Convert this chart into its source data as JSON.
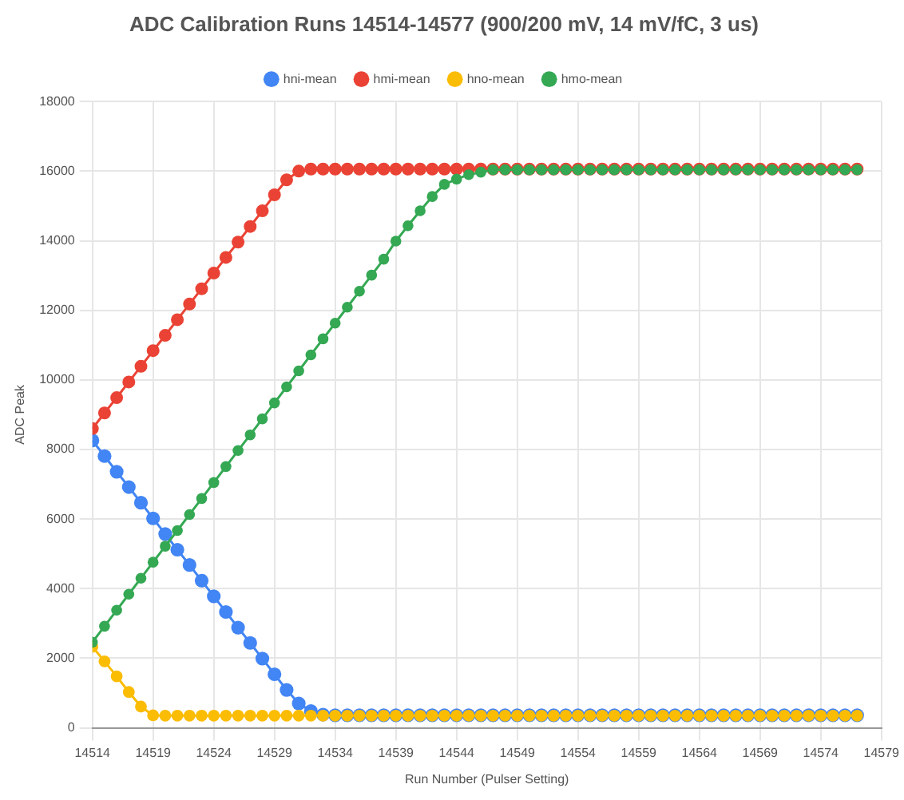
{
  "chart_data": {
    "type": "line",
    "title": "ADC Calibration Runs 14514-14577 (900/200 mV, 14 mV/fC, 3 us)",
    "xlabel": "Run Number (Pulser Setting)",
    "ylabel": "ADC Peak",
    "x": [
      14514,
      14515,
      14516,
      14517,
      14518,
      14519,
      14520,
      14521,
      14522,
      14523,
      14524,
      14525,
      14526,
      14527,
      14528,
      14529,
      14530,
      14531,
      14532,
      14533,
      14534,
      14535,
      14536,
      14537,
      14538,
      14539,
      14540,
      14541,
      14542,
      14543,
      14544,
      14545,
      14546,
      14547,
      14548,
      14549,
      14550,
      14551,
      14552,
      14553,
      14554,
      14555,
      14556,
      14557,
      14558,
      14559,
      14560,
      14561,
      14562,
      14563,
      14564,
      14565,
      14566,
      14567,
      14568,
      14569,
      14570,
      14571,
      14572,
      14573,
      14574,
      14575,
      14576,
      14577
    ],
    "series": [
      {
        "name": "hni-mean",
        "color": "#4285f4",
        "values": [
          8260,
          7810,
          7360,
          6920,
          6470,
          6020,
          5570,
          5120,
          4680,
          4230,
          3780,
          3330,
          2880,
          2440,
          1990,
          1540,
          1090,
          700,
          480,
          380,
          360,
          360,
          360,
          360,
          360,
          360,
          360,
          360,
          360,
          360,
          360,
          360,
          360,
          360,
          360,
          360,
          360,
          360,
          360,
          360,
          360,
          360,
          360,
          360,
          360,
          360,
          360,
          360,
          360,
          360,
          360,
          360,
          360,
          360,
          360,
          360,
          360,
          360,
          360,
          360,
          360,
          360,
          360,
          360
        ]
      },
      {
        "name": "hmi-mean",
        "color": "#ea4335",
        "values": [
          8600,
          9050,
          9490,
          9940,
          10390,
          10840,
          11280,
          11730,
          12180,
          12620,
          13070,
          13520,
          13960,
          14410,
          14860,
          15320,
          15750,
          16000,
          16060,
          16060,
          16060,
          16060,
          16060,
          16060,
          16060,
          16060,
          16060,
          16060,
          16060,
          16060,
          16060,
          16060,
          16060,
          16060,
          16060,
          16060,
          16060,
          16060,
          16060,
          16060,
          16060,
          16060,
          16060,
          16060,
          16060,
          16060,
          16060,
          16060,
          16060,
          16060,
          16060,
          16060,
          16060,
          16060,
          16060,
          16060,
          16060,
          16060,
          16060,
          16060,
          16060,
          16060,
          16060,
          16060
        ]
      },
      {
        "name": "hno-mean",
        "color": "#fbbc04",
        "values": [
          2330,
          1910,
          1480,
          1030,
          610,
          360,
          350,
          350,
          350,
          350,
          350,
          350,
          350,
          350,
          350,
          350,
          350,
          350,
          350,
          350,
          350,
          350,
          350,
          350,
          350,
          350,
          350,
          350,
          350,
          350,
          350,
          350,
          350,
          350,
          350,
          350,
          350,
          350,
          350,
          350,
          350,
          350,
          350,
          350,
          350,
          350,
          350,
          350,
          350,
          350,
          350,
          350,
          350,
          350,
          350,
          350,
          350,
          350,
          350,
          350,
          350,
          350,
          350,
          350
        ]
      },
      {
        "name": "hmo-mean",
        "color": "#34a853",
        "values": [
          2460,
          2920,
          3380,
          3840,
          4300,
          4760,
          5220,
          5670,
          6130,
          6590,
          7050,
          7510,
          7970,
          8420,
          8880,
          9340,
          9800,
          10260,
          10720,
          11180,
          11630,
          12090,
          12550,
          13010,
          13470,
          13990,
          14430,
          14860,
          15270,
          15620,
          15770,
          15900,
          15970,
          16040,
          16040,
          16040,
          16040,
          16040,
          16040,
          16040,
          16040,
          16040,
          16040,
          16040,
          16040,
          16040,
          16040,
          16040,
          16040,
          16040,
          16040,
          16040,
          16040,
          16040,
          16040,
          16040,
          16040,
          16040,
          16040,
          16040,
          16040,
          16040,
          16040,
          16040
        ]
      }
    ],
    "xlim": [
      14514,
      14579
    ],
    "xticks": [
      14514,
      14519,
      14524,
      14529,
      14534,
      14539,
      14544,
      14549,
      14554,
      14559,
      14564,
      14569,
      14574,
      14579
    ],
    "ylim": [
      0,
      18000
    ],
    "yticks": [
      0,
      2000,
      4000,
      6000,
      8000,
      10000,
      12000,
      14000,
      16000,
      18000
    ],
    "grid": true,
    "legend": "top",
    "marker": "circle",
    "line_style": "solid"
  }
}
